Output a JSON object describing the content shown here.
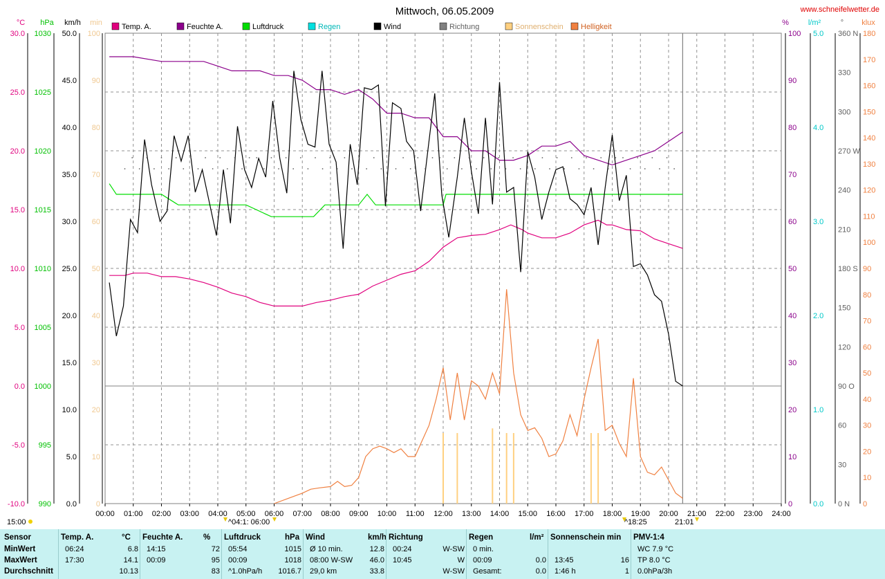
{
  "title": "Mittwoch, 06.05.2009",
  "site": "www.schneifelwetter.de",
  "legend": [
    {
      "label": "Temp. A.",
      "color": "#e0007e"
    },
    {
      "label": "Feuchte A.",
      "color": "#8b008b"
    },
    {
      "label": "Luftdruck",
      "color": "#00dd00"
    },
    {
      "label": "Regen",
      "color": "#00e0e0"
    },
    {
      "label": "Wind",
      "color": "#000000"
    },
    {
      "label": "Richtung",
      "color": "#808080"
    },
    {
      "label": "Sonnenschein",
      "color": "#ffd080"
    },
    {
      "label": "Helligkeit",
      "color": "#f08040"
    }
  ],
  "axes": {
    "temp": {
      "unit": "°C",
      "ticks": [
        "30.0",
        "25.0",
        "20.0",
        "15.0",
        "10.0",
        "5.0",
        "0.0",
        "-5.0",
        "-10.0"
      ],
      "color": "#e0007e"
    },
    "press": {
      "unit": "hPa",
      "ticks": [
        "1030",
        "1025",
        "1020",
        "1015",
        "1010",
        "1005",
        "1000",
        "995",
        "990"
      ],
      "color": "#00c000"
    },
    "wind": {
      "unit": "km/h",
      "ticks": [
        "50.0",
        "45.0",
        "40.0",
        "35.0",
        "30.0",
        "25.0",
        "20.0",
        "15.0",
        "10.0",
        "5.0",
        "0.0"
      ],
      "color": "#000000"
    },
    "sun": {
      "unit": "min",
      "ticks": [
        "100",
        "90",
        "80",
        "70",
        "60",
        "50",
        "40",
        "30",
        "20",
        "10",
        "0"
      ],
      "color": "#f0c890"
    },
    "hum": {
      "unit": "%",
      "ticks": [
        "100",
        "90",
        "80",
        "70",
        "60",
        "50",
        "40",
        "30",
        "20",
        "10",
        "0"
      ],
      "color": "#8b008b"
    },
    "rain": {
      "unit": "l/m²",
      "ticks": [
        "5.0",
        "4.0",
        "3.0",
        "2.0",
        "1.0",
        "0.0"
      ],
      "color": "#00c8c8"
    },
    "dir": {
      "unit": "°",
      "ticks": [
        "360 N",
        "330",
        "300",
        "270 W",
        "240",
        "210",
        "180 S",
        "150",
        "120",
        "90 O",
        "60",
        "30",
        "0 N"
      ],
      "color": "#606060"
    },
    "lux": {
      "unit": "klux",
      "ticks": [
        "180",
        "170",
        "160",
        "150",
        "140",
        "130",
        "120",
        "110",
        "100",
        "90",
        "80",
        "70",
        "60",
        "50",
        "40",
        "30",
        "20",
        "10",
        "0"
      ],
      "color": "#f08040"
    },
    "x": {
      "ticks": [
        "00:00",
        "01:00",
        "02:00",
        "03:00",
        "04:00",
        "05:00",
        "06:00",
        "07:00",
        "08:00",
        "09:00",
        "10:00",
        "11:00",
        "12:00",
        "13:00",
        "14:00",
        "15:00",
        "16:00",
        "17:00",
        "18:00",
        "19:00",
        "20:00",
        "21:00",
        "22:00",
        "23:00",
        "24:00"
      ]
    }
  },
  "markers": {
    "sunrise": "^04:1: 06:00",
    "sunset": "^18:25",
    "end": "21:01",
    "left_time": "15:00"
  },
  "chart_data": {
    "type": "line",
    "x_unit": "hour",
    "series": [
      {
        "name": "Temp. A.",
        "unit": "°C",
        "color": "#e0007e",
        "x": [
          0.15,
          0.7,
          1.0,
          1.5,
          2.0,
          2.5,
          3.0,
          3.5,
          4.0,
          4.5,
          5.0,
          5.5,
          6.0,
          6.5,
          7.0,
          7.5,
          8.0,
          8.5,
          9.0,
          9.5,
          10.0,
          10.5,
          11.0,
          11.5,
          12.0,
          12.5,
          13.0,
          13.5,
          14.0,
          14.4,
          14.8,
          15.0,
          15.5,
          16.0,
          16.5,
          17.0,
          17.5,
          17.8,
          18.0,
          18.5,
          19.0,
          19.5,
          20.0,
          20.5
        ],
        "y": [
          9.4,
          9.4,
          9.6,
          9.6,
          9.3,
          9.3,
          9.1,
          8.8,
          8.4,
          7.9,
          7.6,
          7.1,
          6.8,
          6.8,
          6.8,
          7.1,
          7.3,
          7.6,
          7.8,
          8.5,
          9.0,
          9.5,
          9.8,
          10.6,
          11.8,
          12.6,
          12.8,
          12.9,
          13.3,
          13.7,
          13.3,
          13.0,
          12.6,
          12.6,
          13.0,
          13.7,
          14.1,
          13.7,
          13.7,
          13.3,
          13.2,
          12.5,
          12.1,
          11.7
        ]
      },
      {
        "name": "Feuchte A.",
        "unit": "%",
        "color": "#8b008b",
        "x": [
          0.15,
          1.0,
          2.0,
          2.5,
          3.0,
          3.5,
          4.0,
          4.5,
          5.0,
          5.5,
          6.0,
          6.5,
          7.0,
          7.5,
          8.0,
          8.5,
          9.0,
          9.5,
          10.0,
          10.5,
          11.0,
          11.5,
          12.0,
          12.5,
          13.0,
          13.5,
          14.0,
          14.5,
          15.0,
          15.5,
          16.0,
          16.5,
          17.0,
          17.5,
          18.0,
          18.5,
          19.0,
          19.5,
          20.0,
          20.5
        ],
        "y": [
          95,
          95,
          94,
          94,
          94,
          94,
          93,
          92,
          92,
          92,
          91,
          91,
          90,
          88,
          88,
          87,
          88,
          86,
          83,
          83,
          82,
          82,
          78,
          78,
          75,
          75,
          73,
          73,
          74,
          76,
          76,
          77,
          74,
          73,
          72,
          73,
          74,
          75,
          77,
          79
        ]
      },
      {
        "name": "Luftdruck",
        "unit": "hPa",
        "color": "#00dd00",
        "x": [
          0.15,
          0.4,
          1.0,
          2.0,
          2.6,
          3.0,
          4.0,
          5.0,
          5.9,
          6.5,
          7.0,
          7.4,
          7.8,
          8.5,
          9.0,
          9.3,
          9.6,
          10.0,
          11.0,
          12.0,
          12.1,
          13.0,
          14.0,
          15.0,
          16.0,
          17.0,
          18.0,
          19.0,
          20.0,
          20.5
        ],
        "y": [
          1017.2,
          1016.3,
          1016.3,
          1016.3,
          1015.4,
          1015.4,
          1015.4,
          1015.4,
          1014.4,
          1014.4,
          1014.4,
          1014.4,
          1015.4,
          1015.4,
          1015.4,
          1016.3,
          1015.4,
          1015.4,
          1015.4,
          1015.4,
          1016.3,
          1016.3,
          1016.3,
          1016.3,
          1016.3,
          1016.3,
          1016.3,
          1016.3,
          1016.3,
          1016.3
        ]
      },
      {
        "name": "Wind",
        "unit": "km/h",
        "color": "#000000",
        "x": [
          0.15,
          0.4,
          0.65,
          0.9,
          1.15,
          1.4,
          1.65,
          1.95,
          2.2,
          2.45,
          2.7,
          2.95,
          3.2,
          3.45,
          3.7,
          3.95,
          4.2,
          4.45,
          4.7,
          4.95,
          5.2,
          5.45,
          5.7,
          5.95,
          6.2,
          6.45,
          6.7,
          6.95,
          7.2,
          7.45,
          7.7,
          7.95,
          8.2,
          8.45,
          8.7,
          8.95,
          9.2,
          9.45,
          9.7,
          9.95,
          10.2,
          10.5,
          10.7,
          10.95,
          11.2,
          11.45,
          11.7,
          11.95,
          12.2,
          12.5,
          12.75,
          13.0,
          13.25,
          13.5,
          13.75,
          14.0,
          14.25,
          14.5,
          14.75,
          15.0,
          15.25,
          15.5,
          15.75,
          16.0,
          16.25,
          16.5,
          16.75,
          17.0,
          17.25,
          17.5,
          17.75,
          18.0,
          18.25,
          18.5,
          18.75,
          19.0,
          19.25,
          19.5,
          19.75,
          20.0,
          20.25,
          20.5
        ],
        "y": [
          23.5,
          17.8,
          21.0,
          30.2,
          28.8,
          38.7,
          33.9,
          30.0,
          31.1,
          39.1,
          36.4,
          39.1,
          33.1,
          35.5,
          32.0,
          28.5,
          35.5,
          29.8,
          40.1,
          35.5,
          33.6,
          36.7,
          34.7,
          42.8,
          36.7,
          33.0,
          46.0,
          40.8,
          38.2,
          37.9,
          46.0,
          38.2,
          36.3,
          27.1,
          38.2,
          33.9,
          44.2,
          44.0,
          44.5,
          31.6,
          42.6,
          42.0,
          38.5,
          37.5,
          31.1,
          37.4,
          43.6,
          32.8,
          28.3,
          34.7,
          41.0,
          35.3,
          30.8,
          41.0,
          31.8,
          44.8,
          33.1,
          33.6,
          24.6,
          37.4,
          34.7,
          30.2,
          33.1,
          35.5,
          35.8,
          32.4,
          31.8,
          30.7,
          33.6,
          27.5,
          33.6,
          39.2,
          32.2,
          34.9,
          25.2,
          25.5,
          24.3,
          22.2,
          21.5,
          18.0,
          13.0,
          12.5
        ]
      },
      {
        "name": "Helligkeit",
        "unit": "klux",
        "color": "#f08040",
        "x": [
          6.0,
          6.5,
          7.0,
          7.3,
          7.6,
          8.0,
          8.25,
          8.5,
          8.75,
          9.0,
          9.25,
          9.5,
          9.75,
          10.0,
          10.25,
          10.5,
          10.75,
          11.0,
          11.25,
          11.5,
          11.75,
          12.0,
          12.25,
          12.5,
          12.75,
          13.0,
          13.25,
          13.5,
          13.75,
          14.0,
          14.25,
          14.5,
          14.75,
          15.0,
          15.25,
          15.5,
          15.75,
          16.0,
          16.25,
          16.5,
          16.75,
          17.0,
          17.25,
          17.5,
          17.75,
          18.0,
          18.25,
          18.5,
          18.75,
          19.0,
          19.25,
          19.5,
          19.75,
          20.0,
          20.25,
          20.5
        ],
        "y": [
          0,
          2,
          4,
          5.5,
          6,
          6.5,
          8.5,
          6.5,
          7,
          10,
          18,
          21,
          22,
          21,
          19.5,
          21,
          18,
          18,
          24,
          30,
          40,
          52,
          32,
          50,
          32,
          47,
          45,
          40,
          50,
          42,
          82,
          50,
          34,
          28,
          29,
          25,
          18,
          19,
          24,
          34,
          26,
          40,
          52,
          63,
          28,
          30,
          23,
          18,
          48,
          18,
          12,
          11,
          14,
          9,
          4,
          2
        ]
      },
      {
        "name": "Sonnenschein",
        "unit": "min",
        "color": "#ffd080",
        "x": [
          12.0,
          12.5,
          13.75,
          14.25,
          14.5,
          17.25,
          17.5
        ],
        "y": [
          15,
          15,
          16,
          15,
          15,
          15,
          15
        ]
      }
    ]
  },
  "table": {
    "headers": [
      {
        "label": "Sensor",
        "unit": ""
      },
      {
        "label": "Temp. A.",
        "unit": "°C"
      },
      {
        "label": "Feuchte A.",
        "unit": "%"
      },
      {
        "label": "Luftdruck",
        "unit": "hPa"
      },
      {
        "label": "Wind",
        "unit": "km/h"
      },
      {
        "label": "Richtung",
        "unit": ""
      },
      {
        "label": "Regen",
        "unit": "l/m²"
      },
      {
        "label": "Sonnenschein min",
        "unit": ""
      },
      {
        "label": "PMV-1:4",
        "unit": ""
      }
    ],
    "rows": [
      {
        "label": "MinWert",
        "cells": [
          [
            "06:24",
            "6.8"
          ],
          [
            "14:15",
            "72"
          ],
          [
            "05:54",
            "1015"
          ],
          [
            "Ø 10 min.",
            "12.8"
          ],
          [
            "00:24",
            "W-SW"
          ],
          [
            "0 min.",
            ""
          ],
          [
            "",
            ""
          ],
          [
            "WC 7.9 °C",
            ""
          ]
        ]
      },
      {
        "label": "MaxWert",
        "cells": [
          [
            "17:30",
            "14.1"
          ],
          [
            "00:09",
            "95"
          ],
          [
            "00:09",
            "1018"
          ],
          [
            "08:00  W-SW",
            "46.0"
          ],
          [
            "10:45",
            "W"
          ],
          [
            "00:09",
            "0.0"
          ],
          [
            "13:45",
            "16"
          ],
          [
            "TP 8.0 °C",
            ""
          ]
        ]
      },
      {
        "label": "Durchschnitt",
        "cells": [
          [
            "",
            "10.13"
          ],
          [
            "",
            "83"
          ],
          [
            "^1.0hPa/h",
            "1016.7"
          ],
          [
            "29,0 km",
            "33.8"
          ],
          [
            "",
            "W-SW"
          ],
          [
            "Gesamt:",
            "0.0"
          ],
          [
            "1:46 h",
            "1"
          ],
          [
            "0.0hPa/3h",
            ""
          ]
        ]
      }
    ]
  }
}
